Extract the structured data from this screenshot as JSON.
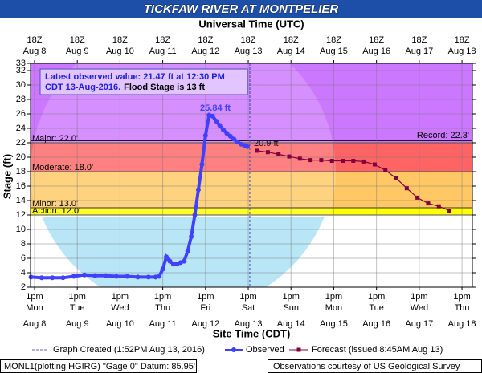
{
  "chart_data": {
    "type": "hydrograph",
    "title": "TICKFAW RIVER AT MONTPELIER",
    "x2_label": "Universal Time (UTC)",
    "x_label": "Site Time (CDT)",
    "y_label": "Stage (ft)",
    "grid": true,
    "xlim": [
      "2016-08-08T10:45-05:00",
      "2016-08-18T18:50-05:00"
    ],
    "ylim": [
      2,
      33
    ],
    "yticks": [
      2,
      4,
      6,
      8,
      10,
      12,
      14,
      16,
      18,
      20,
      22,
      24,
      26,
      28,
      30,
      32,
      33
    ],
    "xticks": [
      {
        "value": "2016-08-08T13:00-05:00",
        "label": "1pm"
      },
      {
        "value": "2016-08-09T13:00-05:00",
        "label": "1pm"
      },
      {
        "value": "2016-08-10T13:00-05:00",
        "label": "1pm"
      },
      {
        "value": "2016-08-11T13:00-05:00",
        "label": "1pm"
      },
      {
        "value": "2016-08-12T13:00-05:00",
        "label": "1pm"
      },
      {
        "value": "2016-08-13T13:00-05:00",
        "label": "1pm"
      },
      {
        "value": "2016-08-14T13:00-05:00",
        "label": "1pm"
      },
      {
        "value": "2016-08-15T13:00-05:00",
        "label": "1pm"
      },
      {
        "value": "2016-08-16T13:00-05:00",
        "label": "1pm"
      },
      {
        "value": "2016-08-17T13:00-05:00",
        "label": "1pm"
      },
      {
        "value": "2016-08-18T13:00-05:00",
        "label": "1pm"
      }
    ],
    "xtick_days": [
      "Mon",
      "Tue",
      "Wed",
      "Thu",
      "Fri",
      "Sat",
      "Sun",
      "Mon",
      "Tue",
      "Wed",
      "Thu"
    ],
    "xtick_dates": [
      "Aug 8",
      "Aug 9",
      "Aug 10",
      "Aug 11",
      "Aug 12",
      "Aug 13",
      "Aug 14",
      "Aug 15",
      "Aug 16",
      "Aug 17",
      "Aug 18"
    ],
    "x2ticks": [
      {
        "value": "2016-08-08T18:00Z",
        "label": "18Z"
      },
      {
        "value": "2016-08-09T18:00Z",
        "label": "18Z"
      },
      {
        "value": "2016-08-10T18:00Z",
        "label": "18Z"
      },
      {
        "value": "2016-08-11T18:00Z",
        "label": "18Z"
      },
      {
        "value": "2016-08-12T18:00Z",
        "label": "18Z"
      },
      {
        "value": "2016-08-13T18:00Z",
        "label": "18Z"
      },
      {
        "value": "2016-08-14T18:00Z",
        "label": "18Z"
      },
      {
        "value": "2016-08-15T18:00Z",
        "label": "18Z"
      },
      {
        "value": "2016-08-16T18:00Z",
        "label": "18Z"
      },
      {
        "value": "2016-08-17T18:00Z",
        "label": "18Z"
      },
      {
        "value": "2016-08-18T18:00Z",
        "label": "18Z"
      }
    ],
    "x2tick_dates": [
      "Aug 8",
      "Aug 9",
      "Aug 10",
      "Aug 11",
      "Aug 12",
      "Aug 13",
      "Aug 14",
      "Aug 15",
      "Aug 16",
      "Aug 17",
      "Aug 18"
    ],
    "flood_categories": [
      {
        "name": "Action: 12.0'",
        "value": 12,
        "color": "#ffff00"
      },
      {
        "name": "Minor: 13.0'",
        "value": 13,
        "color": "#ffc864"
      },
      {
        "name": "Moderate: 18.0'",
        "value": 18,
        "color": "#ff6464"
      },
      {
        "name": "Major: 22.0'",
        "value": 22,
        "color": "#cc77ff"
      }
    ],
    "record": {
      "name": "Record: 22.3'",
      "value": 22.3
    },
    "annotation": [
      "Latest observed value: 21.47 ft at 12:30 PM",
      "CDT 13-Aug-2016.",
      "Flood Stage is 13 ft"
    ],
    "point_labels": [
      "25.84 ft",
      "20.9 ft"
    ],
    "created": {
      "name": "Graph Created (1:52PM Aug 13, 2016)",
      "x": "2016-08-13T13:52-05:00"
    },
    "series": [
      {
        "name": "Observed",
        "color": "#4040ff",
        "x": [
          "2016-08-08T11:00-05:00",
          "2016-08-08T17:00-05:00",
          "2016-08-08T23:00-05:00",
          "2016-08-09T05:00-05:00",
          "2016-08-09T11:00-05:00",
          "2016-08-09T17:00-05:00",
          "2016-08-09T23:00-05:00",
          "2016-08-10T05:00-05:00",
          "2016-08-10T11:00-05:00",
          "2016-08-10T17:00-05:00",
          "2016-08-10T23:00-05:00",
          "2016-08-11T05:00-05:00",
          "2016-08-11T09:00-05:00",
          "2016-08-11T11:00-05:00",
          "2016-08-11T13:00-05:00",
          "2016-08-11T15:00-05:00",
          "2016-08-11T17:00-05:00",
          "2016-08-11T19:00-05:00",
          "2016-08-11T21:00-05:00",
          "2016-08-11T23:00-05:00",
          "2016-08-12T01:00-05:00",
          "2016-08-12T03:00-05:00",
          "2016-08-12T05:00-05:00",
          "2016-08-12T07:00-05:00",
          "2016-08-12T09:00-05:00",
          "2016-08-12T11:00-05:00",
          "2016-08-12T13:00-05:00",
          "2016-08-12T15:00-05:00",
          "2016-08-12T17:00-05:00",
          "2016-08-12T19:00-05:00",
          "2016-08-12T21:00-05:00",
          "2016-08-12T23:00-05:00",
          "2016-08-13T01:00-05:00",
          "2016-08-13T03:00-05:00",
          "2016-08-13T05:00-05:00",
          "2016-08-13T07:00-05:00",
          "2016-08-13T09:00-05:00",
          "2016-08-13T11:00-05:00",
          "2016-08-13T12:30-05:00"
        ],
        "values": [
          3.4,
          3.3,
          3.3,
          3.3,
          3.5,
          3.7,
          3.6,
          3.6,
          3.5,
          3.5,
          3.4,
          3.4,
          3.4,
          3.5,
          4.5,
          6.2,
          5.6,
          5.2,
          5.2,
          5.4,
          5.6,
          7.0,
          9.0,
          12.0,
          15.5,
          19.0,
          23.0,
          25.84,
          25.7,
          25.0,
          24.4,
          23.8,
          23.3,
          22.9,
          22.5,
          22.1,
          21.8,
          21.6,
          21.47
        ]
      },
      {
        "name": "Forecast (issued 8:45AM Aug 13)",
        "color": "#800040",
        "x": [
          "2016-08-13T18:00-05:00",
          "2016-08-14T00:00-05:00",
          "2016-08-14T06:00-05:00",
          "2016-08-14T12:00-05:00",
          "2016-08-14T18:00-05:00",
          "2016-08-15T00:00-05:00",
          "2016-08-15T06:00-05:00",
          "2016-08-15T12:00-05:00",
          "2016-08-15T18:00-05:00",
          "2016-08-16T00:00-05:00",
          "2016-08-16T06:00-05:00",
          "2016-08-16T12:00-05:00",
          "2016-08-16T18:00-05:00",
          "2016-08-17T00:00-05:00",
          "2016-08-17T06:00-05:00",
          "2016-08-17T12:00-05:00",
          "2016-08-17T18:00-05:00",
          "2016-08-18T00:00-05:00",
          "2016-08-18T06:00-05:00"
        ],
        "values": [
          20.9,
          20.7,
          20.4,
          20.1,
          19.8,
          19.6,
          19.6,
          19.5,
          19.5,
          19.5,
          19.4,
          19.0,
          18.2,
          17.1,
          15.7,
          14.4,
          13.6,
          13.2,
          12.6
        ]
      }
    ],
    "footer_left": "MONL1(plotting HGIRG) \"Gage 0\" Datum: 85.95'",
    "footer_right": "Observations courtesy of US Geological Survey"
  }
}
